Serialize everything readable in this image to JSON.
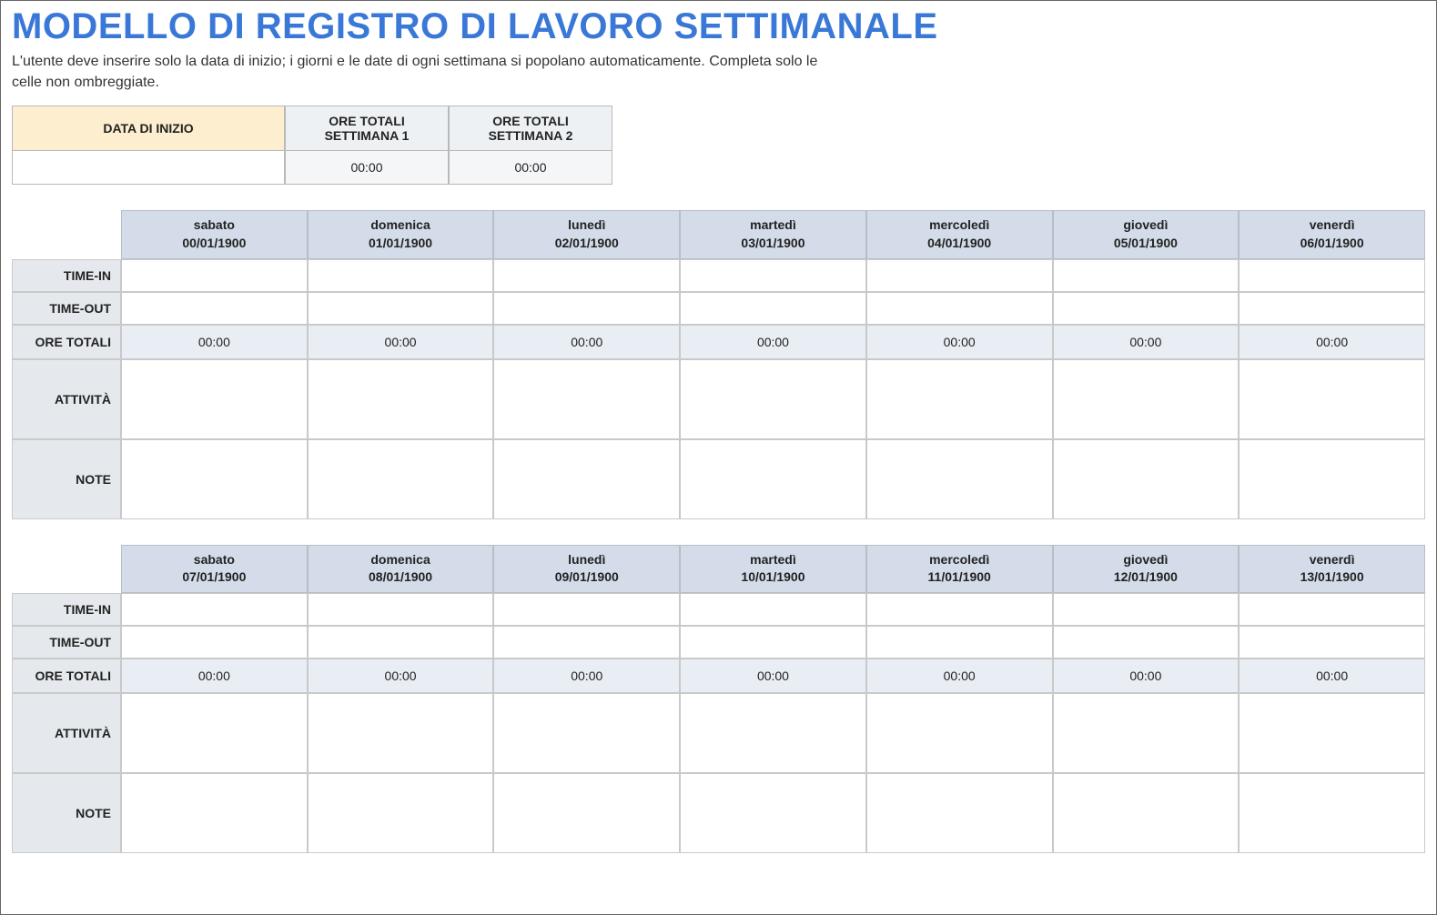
{
  "title": "MODELLO DI REGISTRO DI LAVORO SETTIMANALE",
  "subtitle": "L'utente deve inserire solo la data di inizio; i giorni e le date di ogni settimana si popolano automaticamente. Completa solo le celle non ombreggiate.",
  "colors": {
    "title": "#3a78d8",
    "day_header_bg": "#d3dce8",
    "rowlabel_bg": "#e5e9ee",
    "totals_cell_bg": "#e9eef5",
    "start_header_bg": "#fdeecf",
    "week_summary_header_bg": "#eef1f4",
    "week_summary_value_bg": "#f4f6f8",
    "border": "#c9c9c9",
    "outer_border": "#666666",
    "background": "#ffffff"
  },
  "summary": {
    "start_label": "DATA DI INIZIO",
    "start_value": "",
    "week1_label": "ORE TOTALI SETTIMANA 1",
    "week1_value": "00:00",
    "week2_label": "ORE TOTALI SETTIMANA 2",
    "week2_value": "00:00"
  },
  "row_labels": {
    "time_in": "TIME-IN",
    "time_out": "TIME-OUT",
    "ore_totali": "ORE TOTALI",
    "attivita": "ATTIVITÀ",
    "note": "NOTE"
  },
  "weeks": [
    {
      "days": [
        {
          "name": "sabato",
          "date": "00/01/1900",
          "time_in": "",
          "time_out": "",
          "total": "00:00",
          "attivita": "",
          "note": ""
        },
        {
          "name": "domenica",
          "date": "01/01/1900",
          "time_in": "",
          "time_out": "",
          "total": "00:00",
          "attivita": "",
          "note": ""
        },
        {
          "name": "lunedì",
          "date": "02/01/1900",
          "time_in": "",
          "time_out": "",
          "total": "00:00",
          "attivita": "",
          "note": ""
        },
        {
          "name": "martedì",
          "date": "03/01/1900",
          "time_in": "",
          "time_out": "",
          "total": "00:00",
          "attivita": "",
          "note": ""
        },
        {
          "name": "mercoledì",
          "date": "04/01/1900",
          "time_in": "",
          "time_out": "",
          "total": "00:00",
          "attivita": "",
          "note": ""
        },
        {
          "name": "giovedì",
          "date": "05/01/1900",
          "time_in": "",
          "time_out": "",
          "total": "00:00",
          "attivita": "",
          "note": ""
        },
        {
          "name": "venerdì",
          "date": "06/01/1900",
          "time_in": "",
          "time_out": "",
          "total": "00:00",
          "attivita": "",
          "note": ""
        }
      ]
    },
    {
      "days": [
        {
          "name": "sabato",
          "date": "07/01/1900",
          "time_in": "",
          "time_out": "",
          "total": "00:00",
          "attivita": "",
          "note": ""
        },
        {
          "name": "domenica",
          "date": "08/01/1900",
          "time_in": "",
          "time_out": "",
          "total": "00:00",
          "attivita": "",
          "note": ""
        },
        {
          "name": "lunedì",
          "date": "09/01/1900",
          "time_in": "",
          "time_out": "",
          "total": "00:00",
          "attivita": "",
          "note": ""
        },
        {
          "name": "martedì",
          "date": "10/01/1900",
          "time_in": "",
          "time_out": "",
          "total": "00:00",
          "attivita": "",
          "note": ""
        },
        {
          "name": "mercoledì",
          "date": "11/01/1900",
          "time_in": "",
          "time_out": "",
          "total": "00:00",
          "attivita": "",
          "note": ""
        },
        {
          "name": "giovedì",
          "date": "12/01/1900",
          "time_in": "",
          "time_out": "",
          "total": "00:00",
          "attivita": "",
          "note": ""
        },
        {
          "name": "venerdì",
          "date": "13/01/1900",
          "time_in": "",
          "time_out": "",
          "total": "00:00",
          "attivita": "",
          "note": ""
        }
      ]
    }
  ]
}
